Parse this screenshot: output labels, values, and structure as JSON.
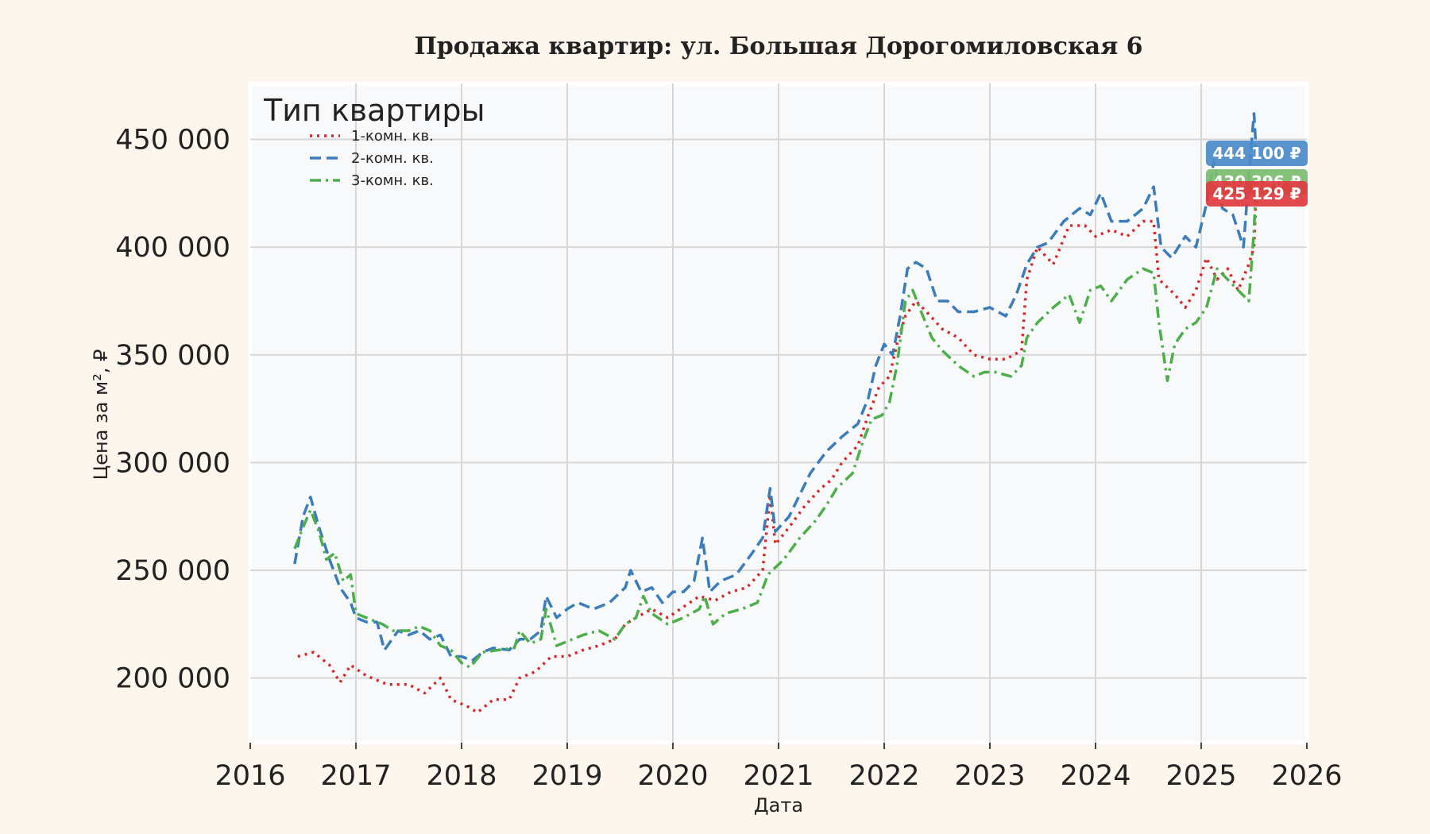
{
  "chart_data": {
    "type": "line",
    "title": "Продажа квартир: ул. Большая Дорогомиловская 6",
    "xlabel": "Дата",
    "ylabel": "Цена за м², ₽",
    "xlim": [
      2016,
      2026
    ],
    "ylim": [
      170000,
      476000
    ],
    "x_ticks": [
      "2016",
      "2017",
      "2018",
      "2019",
      "2020",
      "2021",
      "2022",
      "2023",
      "2024",
      "2025",
      "2026"
    ],
    "y_ticks": [
      200000,
      250000,
      300000,
      350000,
      400000,
      450000
    ],
    "y_tick_labels": [
      "200 000",
      "250 000",
      "300 000",
      "350 000",
      "400 000",
      "450 000"
    ],
    "grid": true,
    "legend": {
      "title": "Тип квартиры",
      "placement": "top-left"
    },
    "series": [
      {
        "name": "1-комн. кв.",
        "color": "#d62728",
        "line_style": "dotted",
        "end_label": "425 129 ₽",
        "points": [
          [
            2016.45,
            210000
          ],
          [
            2016.6,
            212000
          ],
          [
            2016.75,
            206000
          ],
          [
            2016.85,
            198000
          ],
          [
            2016.95,
            206000
          ],
          [
            2017.1,
            201000
          ],
          [
            2017.3,
            197000
          ],
          [
            2017.5,
            197000
          ],
          [
            2017.65,
            193000
          ],
          [
            2017.8,
            200000
          ],
          [
            2017.9,
            190000
          ],
          [
            2018.05,
            187000
          ],
          [
            2018.15,
            184000
          ],
          [
            2018.3,
            190000
          ],
          [
            2018.45,
            190000
          ],
          [
            2018.55,
            200000
          ],
          [
            2018.7,
            203000
          ],
          [
            2018.85,
            210000
          ],
          [
            2019.0,
            210000
          ],
          [
            2019.15,
            213000
          ],
          [
            2019.3,
            215000
          ],
          [
            2019.45,
            218000
          ],
          [
            2019.55,
            225000
          ],
          [
            2019.65,
            228000
          ],
          [
            2019.8,
            232000
          ],
          [
            2019.95,
            228000
          ],
          [
            2020.1,
            233000
          ],
          [
            2020.25,
            238000
          ],
          [
            2020.4,
            236000
          ],
          [
            2020.55,
            240000
          ],
          [
            2020.7,
            242000
          ],
          [
            2020.85,
            250000
          ],
          [
            2020.92,
            285000
          ],
          [
            2020.97,
            262000
          ],
          [
            2021.1,
            270000
          ],
          [
            2021.25,
            280000
          ],
          [
            2021.4,
            288000
          ],
          [
            2021.5,
            292000
          ],
          [
            2021.6,
            300000
          ],
          [
            2021.75,
            308000
          ],
          [
            2021.85,
            322000
          ],
          [
            2021.95,
            335000
          ],
          [
            2022.05,
            340000
          ],
          [
            2022.12,
            355000
          ],
          [
            2022.2,
            368000
          ],
          [
            2022.3,
            375000
          ],
          [
            2022.4,
            370000
          ],
          [
            2022.55,
            362000
          ],
          [
            2022.7,
            358000
          ],
          [
            2022.85,
            350000
          ],
          [
            2023.0,
            348000
          ],
          [
            2023.15,
            348000
          ],
          [
            2023.3,
            352000
          ],
          [
            2023.35,
            385000
          ],
          [
            2023.45,
            400000
          ],
          [
            2023.6,
            392000
          ],
          [
            2023.75,
            410000
          ],
          [
            2023.9,
            410000
          ],
          [
            2024.0,
            405000
          ],
          [
            2024.15,
            408000
          ],
          [
            2024.3,
            405000
          ],
          [
            2024.45,
            412000
          ],
          [
            2024.55,
            412000
          ],
          [
            2024.6,
            385000
          ],
          [
            2024.75,
            378000
          ],
          [
            2024.85,
            372000
          ],
          [
            2024.95,
            380000
          ],
          [
            2025.05,
            395000
          ],
          [
            2025.15,
            385000
          ],
          [
            2025.25,
            390000
          ],
          [
            2025.35,
            380000
          ],
          [
            2025.45,
            392000
          ],
          [
            2025.5,
            400000
          ],
          [
            2025.52,
            425129
          ]
        ]
      },
      {
        "name": "2-комн. кв.",
        "color": "#3b7dba",
        "line_style": "dashed",
        "end_label": "444 100 ₽",
        "points": [
          [
            2016.42,
            253000
          ],
          [
            2016.5,
            275000
          ],
          [
            2016.57,
            284000
          ],
          [
            2016.65,
            270000
          ],
          [
            2016.75,
            255000
          ],
          [
            2016.85,
            242000
          ],
          [
            2016.95,
            235000
          ],
          [
            2017.0,
            228000
          ],
          [
            2017.1,
            226000
          ],
          [
            2017.2,
            226000
          ],
          [
            2017.27,
            213000
          ],
          [
            2017.4,
            222000
          ],
          [
            2017.5,
            220000
          ],
          [
            2017.6,
            222000
          ],
          [
            2017.7,
            218000
          ],
          [
            2017.8,
            220000
          ],
          [
            2017.9,
            210000
          ],
          [
            2018.0,
            210000
          ],
          [
            2018.1,
            208000
          ],
          [
            2018.2,
            212000
          ],
          [
            2018.3,
            214000
          ],
          [
            2018.45,
            213000
          ],
          [
            2018.55,
            218000
          ],
          [
            2018.65,
            218000
          ],
          [
            2018.75,
            222000
          ],
          [
            2018.8,
            238000
          ],
          [
            2018.9,
            228000
          ],
          [
            2019.0,
            232000
          ],
          [
            2019.1,
            235000
          ],
          [
            2019.25,
            232000
          ],
          [
            2019.4,
            235000
          ],
          [
            2019.55,
            242000
          ],
          [
            2019.6,
            250000
          ],
          [
            2019.7,
            240000
          ],
          [
            2019.8,
            242000
          ],
          [
            2019.9,
            235000
          ],
          [
            2020.0,
            240000
          ],
          [
            2020.1,
            240000
          ],
          [
            2020.2,
            245000
          ],
          [
            2020.28,
            265000
          ],
          [
            2020.35,
            240000
          ],
          [
            2020.45,
            245000
          ],
          [
            2020.6,
            248000
          ],
          [
            2020.75,
            258000
          ],
          [
            2020.85,
            265000
          ],
          [
            2020.92,
            288000
          ],
          [
            2020.97,
            268000
          ],
          [
            2021.1,
            275000
          ],
          [
            2021.2,
            285000
          ],
          [
            2021.3,
            295000
          ],
          [
            2021.45,
            305000
          ],
          [
            2021.6,
            312000
          ],
          [
            2021.75,
            318000
          ],
          [
            2021.85,
            330000
          ],
          [
            2021.92,
            345000
          ],
          [
            2022.0,
            355000
          ],
          [
            2022.08,
            350000
          ],
          [
            2022.15,
            368000
          ],
          [
            2022.22,
            390000
          ],
          [
            2022.3,
            393000
          ],
          [
            2022.4,
            390000
          ],
          [
            2022.5,
            375000
          ],
          [
            2022.6,
            375000
          ],
          [
            2022.7,
            370000
          ],
          [
            2022.85,
            370000
          ],
          [
            2023.0,
            372000
          ],
          [
            2023.15,
            368000
          ],
          [
            2023.25,
            378000
          ],
          [
            2023.35,
            392000
          ],
          [
            2023.45,
            400000
          ],
          [
            2023.55,
            402000
          ],
          [
            2023.7,
            412000
          ],
          [
            2023.85,
            418000
          ],
          [
            2023.95,
            415000
          ],
          [
            2024.05,
            425000
          ],
          [
            2024.15,
            412000
          ],
          [
            2024.3,
            412000
          ],
          [
            2024.45,
            418000
          ],
          [
            2024.55,
            428000
          ],
          [
            2024.62,
            400000
          ],
          [
            2024.72,
            395000
          ],
          [
            2024.85,
            405000
          ],
          [
            2024.95,
            400000
          ],
          [
            2025.05,
            420000
          ],
          [
            2025.12,
            440000
          ],
          [
            2025.2,
            418000
          ],
          [
            2025.3,
            415000
          ],
          [
            2025.4,
            400000
          ],
          [
            2025.47,
            445000
          ],
          [
            2025.5,
            462000
          ],
          [
            2025.52,
            444100
          ]
        ]
      },
      {
        "name": "3-комн. кв.",
        "color": "#4daf4a",
        "line_style": "dashdot",
        "end_label": "430 396 ₽",
        "points": [
          [
            2016.42,
            260000
          ],
          [
            2016.5,
            270000
          ],
          [
            2016.57,
            278000
          ],
          [
            2016.65,
            268000
          ],
          [
            2016.72,
            255000
          ],
          [
            2016.8,
            258000
          ],
          [
            2016.88,
            245000
          ],
          [
            2016.95,
            248000
          ],
          [
            2017.0,
            230000
          ],
          [
            2017.1,
            228000
          ],
          [
            2017.25,
            225000
          ],
          [
            2017.35,
            222000
          ],
          [
            2017.5,
            222000
          ],
          [
            2017.6,
            224000
          ],
          [
            2017.7,
            222000
          ],
          [
            2017.8,
            215000
          ],
          [
            2017.9,
            213000
          ],
          [
            2018.0,
            207000
          ],
          [
            2018.08,
            205000
          ],
          [
            2018.2,
            212000
          ],
          [
            2018.35,
            213000
          ],
          [
            2018.5,
            214000
          ],
          [
            2018.55,
            222000
          ],
          [
            2018.65,
            216000
          ],
          [
            2018.75,
            218000
          ],
          [
            2018.8,
            232000
          ],
          [
            2018.9,
            215000
          ],
          [
            2019.0,
            217000
          ],
          [
            2019.15,
            220000
          ],
          [
            2019.3,
            222000
          ],
          [
            2019.45,
            218000
          ],
          [
            2019.55,
            225000
          ],
          [
            2019.65,
            228000
          ],
          [
            2019.72,
            238000
          ],
          [
            2019.8,
            230000
          ],
          [
            2019.95,
            225000
          ],
          [
            2020.1,
            228000
          ],
          [
            2020.25,
            232000
          ],
          [
            2020.3,
            238000
          ],
          [
            2020.38,
            225000
          ],
          [
            2020.5,
            230000
          ],
          [
            2020.65,
            232000
          ],
          [
            2020.8,
            235000
          ],
          [
            2020.9,
            248000
          ],
          [
            2021.05,
            255000
          ],
          [
            2021.2,
            265000
          ],
          [
            2021.35,
            273000
          ],
          [
            2021.45,
            280000
          ],
          [
            2021.55,
            288000
          ],
          [
            2021.7,
            295000
          ],
          [
            2021.8,
            310000
          ],
          [
            2021.88,
            320000
          ],
          [
            2021.98,
            322000
          ],
          [
            2022.05,
            328000
          ],
          [
            2022.12,
            345000
          ],
          [
            2022.2,
            375000
          ],
          [
            2022.27,
            380000
          ],
          [
            2022.35,
            370000
          ],
          [
            2022.45,
            358000
          ],
          [
            2022.55,
            352000
          ],
          [
            2022.7,
            345000
          ],
          [
            2022.85,
            340000
          ],
          [
            2022.95,
            342000
          ],
          [
            2023.05,
            342000
          ],
          [
            2023.2,
            340000
          ],
          [
            2023.3,
            345000
          ],
          [
            2023.35,
            358000
          ],
          [
            2023.45,
            365000
          ],
          [
            2023.6,
            372000
          ],
          [
            2023.75,
            378000
          ],
          [
            2023.85,
            365000
          ],
          [
            2023.95,
            380000
          ],
          [
            2024.05,
            382000
          ],
          [
            2024.15,
            375000
          ],
          [
            2024.3,
            385000
          ],
          [
            2024.45,
            390000
          ],
          [
            2024.55,
            388000
          ],
          [
            2024.6,
            365000
          ],
          [
            2024.68,
            338000
          ],
          [
            2024.75,
            355000
          ],
          [
            2024.85,
            362000
          ],
          [
            2024.95,
            365000
          ],
          [
            2025.05,
            372000
          ],
          [
            2025.15,
            390000
          ],
          [
            2025.25,
            385000
          ],
          [
            2025.35,
            380000
          ],
          [
            2025.45,
            375000
          ],
          [
            2025.5,
            408000
          ],
          [
            2025.52,
            430396
          ]
        ]
      }
    ]
  }
}
